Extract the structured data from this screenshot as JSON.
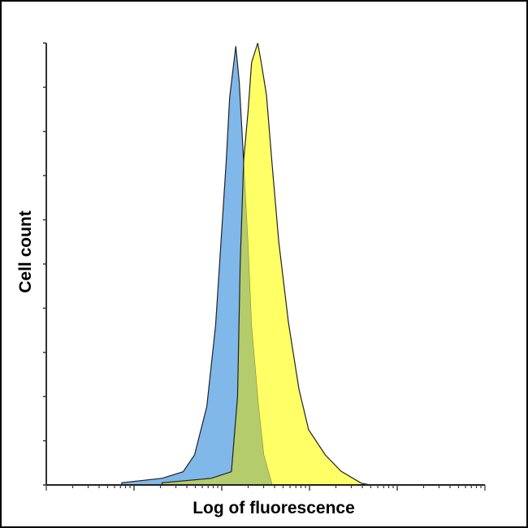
{
  "chart_data": {
    "type": "area",
    "title": "",
    "xlabel": "Log of fluorescence",
    "ylabel": "Cell count",
    "x_scale": "log",
    "xlim_decades": [
      0,
      5
    ],
    "ylim": [
      0,
      100
    ],
    "y_ticks_count": 11,
    "grid": false,
    "legend": "none",
    "colors": {
      "series1": "#80b8ea",
      "series2": "#ffff66",
      "overlap": "#b4cc6c",
      "outline": "#222222"
    },
    "series": [
      {
        "x": [
          0.86,
          1.32,
          1.56,
          1.69,
          1.83,
          1.93,
          1.99,
          2.05,
          2.09,
          2.16,
          2.2,
          2.25,
          2.3,
          2.34,
          2.42,
          2.48,
          2.57
        ],
        "values": [
          0.5,
          1.5,
          3,
          6.8,
          17.8,
          36.2,
          54.6,
          73,
          87.7,
          99.3,
          91,
          73,
          54.6,
          36.2,
          17.8,
          6.8,
          0.4
        ]
      },
      {
        "x": [
          1.32,
          1.88,
          2.11,
          2.18,
          2.21,
          2.25,
          2.3,
          2.34,
          2.41,
          2.45,
          2.51,
          2.57,
          2.65,
          2.76,
          2.88,
          2.99,
          3.18,
          3.36,
          3.59,
          3.69
        ],
        "values": [
          0.5,
          1.5,
          3,
          20,
          50,
          73.5,
          84.6,
          95.6,
          100,
          95.6,
          88.2,
          73.5,
          55,
          36.8,
          21.7,
          12.5,
          6.8,
          3.1,
          0.4,
          0
        ]
      }
    ]
  }
}
